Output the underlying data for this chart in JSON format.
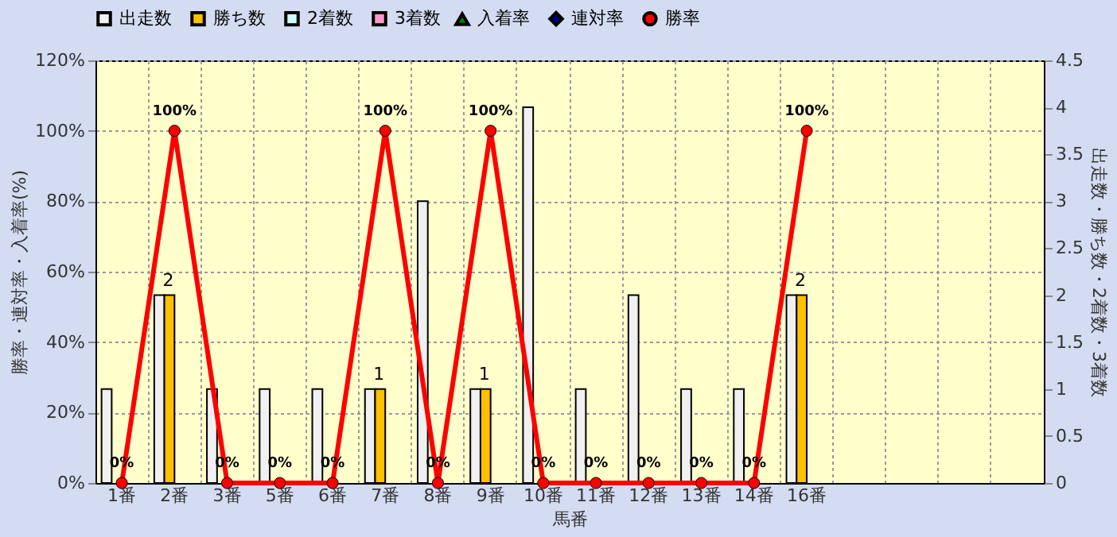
{
  "chart_data": {
    "type": "bar",
    "xlabel": "馬番",
    "ylabel": "勝率・連対率・入着率(%)",
    "y2label": "出走数・勝ち数・2着数・3着数",
    "categories": [
      "1番",
      "2番",
      "3番",
      "5番",
      "6番",
      "7番",
      "8番",
      "9番",
      "10番",
      "11番",
      "12番",
      "13番",
      "14番",
      "16番",
      null,
      null,
      null,
      null
    ],
    "series": [
      {
        "name": "出走数",
        "axis": "y2",
        "color": "#f0f0f0",
        "values": [
          1,
          2,
          1,
          1,
          1,
          1,
          3,
          1,
          4,
          1,
          2,
          1,
          1,
          2,
          null,
          null,
          null,
          null
        ]
      },
      {
        "name": "勝ち数",
        "axis": "y2",
        "color": "#ffc000",
        "values": [
          0,
          2,
          0,
          0,
          0,
          1,
          0,
          1,
          0,
          0,
          0,
          0,
          0,
          2,
          null,
          null,
          null,
          null
        ],
        "value_labels": [
          null,
          "2",
          null,
          null,
          null,
          "1",
          null,
          "1",
          null,
          null,
          null,
          null,
          null,
          "2",
          null,
          null,
          null,
          null
        ]
      },
      {
        "name": "2着数",
        "axis": "y2",
        "color": "#ccffff",
        "values": [
          0,
          0,
          0,
          0,
          0,
          0,
          0,
          0,
          0,
          0,
          0,
          0,
          0,
          0,
          null,
          null,
          null,
          null
        ]
      },
      {
        "name": "3着数",
        "axis": "y2",
        "color": "#ff99cc",
        "values": [
          0,
          0,
          0,
          0,
          0,
          0,
          0,
          0,
          0,
          0,
          0,
          0,
          0,
          0,
          null,
          null,
          null,
          null
        ]
      },
      {
        "name": "入着率",
        "type": "line",
        "marker": "triangle",
        "color": "#008000",
        "values": [
          null,
          null,
          null,
          null,
          null,
          null,
          null,
          null,
          null,
          null,
          null,
          null,
          null,
          null,
          null,
          null,
          null,
          null
        ]
      },
      {
        "name": "連対率",
        "type": "line",
        "marker": "diamond",
        "color": "#000080",
        "values": [
          null,
          null,
          null,
          null,
          null,
          null,
          null,
          null,
          null,
          null,
          null,
          null,
          null,
          null,
          null,
          null,
          null,
          null
        ]
      },
      {
        "name": "勝率",
        "type": "line",
        "marker": "circle",
        "color": "#ff0000",
        "values": [
          0,
          100,
          0,
          0,
          0,
          100,
          0,
          100,
          0,
          0,
          0,
          0,
          0,
          100,
          null,
          null,
          null,
          null
        ],
        "value_labels": [
          "0%",
          "100%",
          "0%",
          "0%",
          "0%",
          "100%",
          "0%",
          "100%",
          "0%",
          "0%",
          "0%",
          "0%",
          "0%",
          "100%",
          null,
          null,
          null,
          null
        ]
      }
    ],
    "ylim": [
      0,
      120
    ],
    "yticks": [
      {
        "value": 0,
        "label": "0%"
      },
      {
        "value": 20,
        "label": "20%"
      },
      {
        "value": 40,
        "label": "40%"
      },
      {
        "value": 60,
        "label": "60%"
      },
      {
        "value": 80,
        "label": "80%"
      },
      {
        "value": 100,
        "label": "100%"
      },
      {
        "value": 120,
        "label": "120%"
      }
    ],
    "y2lim": [
      0,
      4.5
    ],
    "y2ticks": [
      0,
      0.5,
      1,
      1.5,
      2,
      2.5,
      3,
      3.5,
      4,
      4.5
    ],
    "grid": true,
    "legend": "top"
  }
}
